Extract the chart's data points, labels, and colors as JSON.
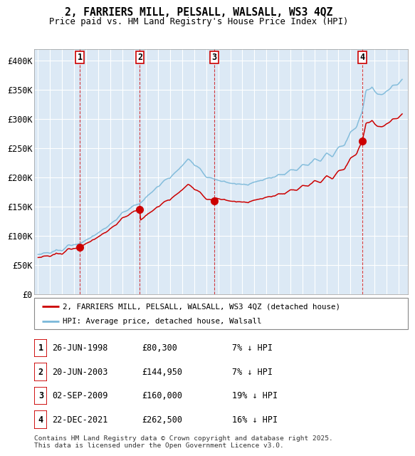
{
  "title1": "2, FARRIERS MILL, PELSALL, WALSALL, WS3 4QZ",
  "title2": "Price paid vs. HM Land Registry's House Price Index (HPI)",
  "ylim": [
    0,
    420000
  ],
  "yticks": [
    0,
    50000,
    100000,
    150000,
    200000,
    250000,
    300000,
    350000,
    400000
  ],
  "ytick_labels": [
    "£0",
    "£50K",
    "£100K",
    "£150K",
    "£200K",
    "£250K",
    "£300K",
    "£350K",
    "£400K"
  ],
  "bg_color": "#dce9f5",
  "grid_color": "#ffffff",
  "red_color": "#cc0000",
  "blue_color": "#7ab8d9",
  "sale_years": [
    1998.49,
    2003.47,
    2009.67,
    2021.97
  ],
  "sale_prices": [
    80300,
    144950,
    160000,
    262500
  ],
  "sale_numbers": [
    1,
    2,
    3,
    4
  ],
  "legend_label_red": "2, FARRIERS MILL, PELSALL, WALSALL, WS3 4QZ (detached house)",
  "legend_label_blue": "HPI: Average price, detached house, Walsall",
  "table_entries": [
    {
      "num": 1,
      "date": "26-JUN-1998",
      "price": "£80,300",
      "pct": "7% ↓ HPI"
    },
    {
      "num": 2,
      "date": "20-JUN-2003",
      "price": "£144,950",
      "pct": "7% ↓ HPI"
    },
    {
      "num": 3,
      "date": "02-SEP-2009",
      "price": "£160,000",
      "pct": "19% ↓ HPI"
    },
    {
      "num": 4,
      "date": "22-DEC-2021",
      "price": "£262,500",
      "pct": "16% ↓ HPI"
    }
  ],
  "footer": "Contains HM Land Registry data © Crown copyright and database right 2025.\nThis data is licensed under the Open Government Licence v3.0."
}
